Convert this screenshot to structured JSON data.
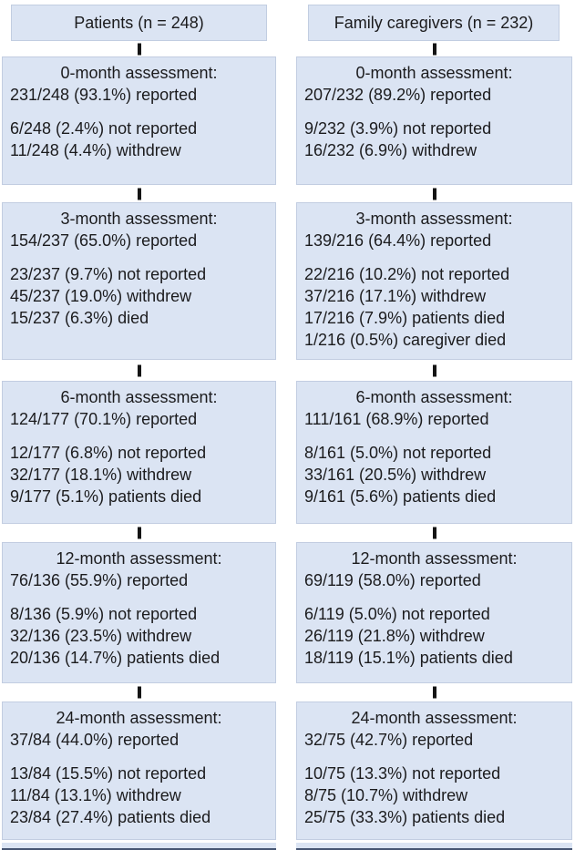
{
  "colors": {
    "box_fill": "#dbe4f3",
    "box_border": "#c2cde1",
    "text": "#1b1b1d",
    "connector": "#141414",
    "cutoff_edge": "#465572",
    "background": "#ffffff"
  },
  "columns": [
    {
      "header": "Patients (n = 248)",
      "rows": [
        {
          "title": "0-month assessment:",
          "reported": "231/248 (93.1%) reported",
          "others": [
            "6/248 (2.4%) not reported",
            "11/248 (4.4%) withdrew"
          ]
        },
        {
          "title": "3-month assessment:",
          "reported": "154/237 (65.0%) reported",
          "others": [
            "23/237 (9.7%) not reported",
            "45/237 (19.0%) withdrew",
            "15/237 (6.3%) died"
          ]
        },
        {
          "title": "6-month assessment:",
          "reported": "124/177 (70.1%) reported",
          "others": [
            "12/177 (6.8%) not reported",
            "32/177 (18.1%) withdrew",
            "9/177 (5.1%) patients died"
          ]
        },
        {
          "title": "12-month assessment:",
          "reported": "76/136 (55.9%) reported",
          "others": [
            "8/136 (5.9%) not reported",
            "32/136 (23.5%) withdrew",
            "20/136 (14.7%) patients died"
          ]
        },
        {
          "title": "24-month assessment:",
          "reported": "37/84 (44.0%) reported",
          "others": [
            "13/84 (15.5%) not reported",
            "11/84 (13.1%) withdrew",
            "23/84 (27.4%) patients died"
          ]
        }
      ]
    },
    {
      "header": "Family caregivers (n = 232)",
      "rows": [
        {
          "title": "0-month assessment:",
          "reported": "207/232 (89.2%) reported",
          "others": [
            "9/232 (3.9%) not reported",
            "16/232 (6.9%) withdrew"
          ]
        },
        {
          "title": "3-month assessment:",
          "reported": "139/216 (64.4%) reported",
          "others": [
            "22/216 (10.2%) not reported",
            "37/216 (17.1%) withdrew",
            "17/216 (7.9%) patients died",
            "1/216 (0.5%) caregiver died"
          ]
        },
        {
          "title": "6-month assessment:",
          "reported": "111/161 (68.9%) reported",
          "others": [
            "8/161 (5.0%) not reported",
            "33/161 (20.5%) withdrew",
            "9/161 (5.6%) patients died"
          ]
        },
        {
          "title": "12-month assessment:",
          "reported": "69/119 (58.0%) reported",
          "others": [
            "6/119 (5.0%) not reported",
            "26/119 (21.8%) withdrew",
            "18/119 (15.1%) patients died"
          ]
        },
        {
          "title": "24-month assessment:",
          "reported": "32/75 (42.7%) reported",
          "others": [
            "10/75 (13.3%) not reported",
            "8/75 (10.7%) withdrew",
            "25/75 (33.3%) patients died"
          ]
        }
      ]
    }
  ]
}
